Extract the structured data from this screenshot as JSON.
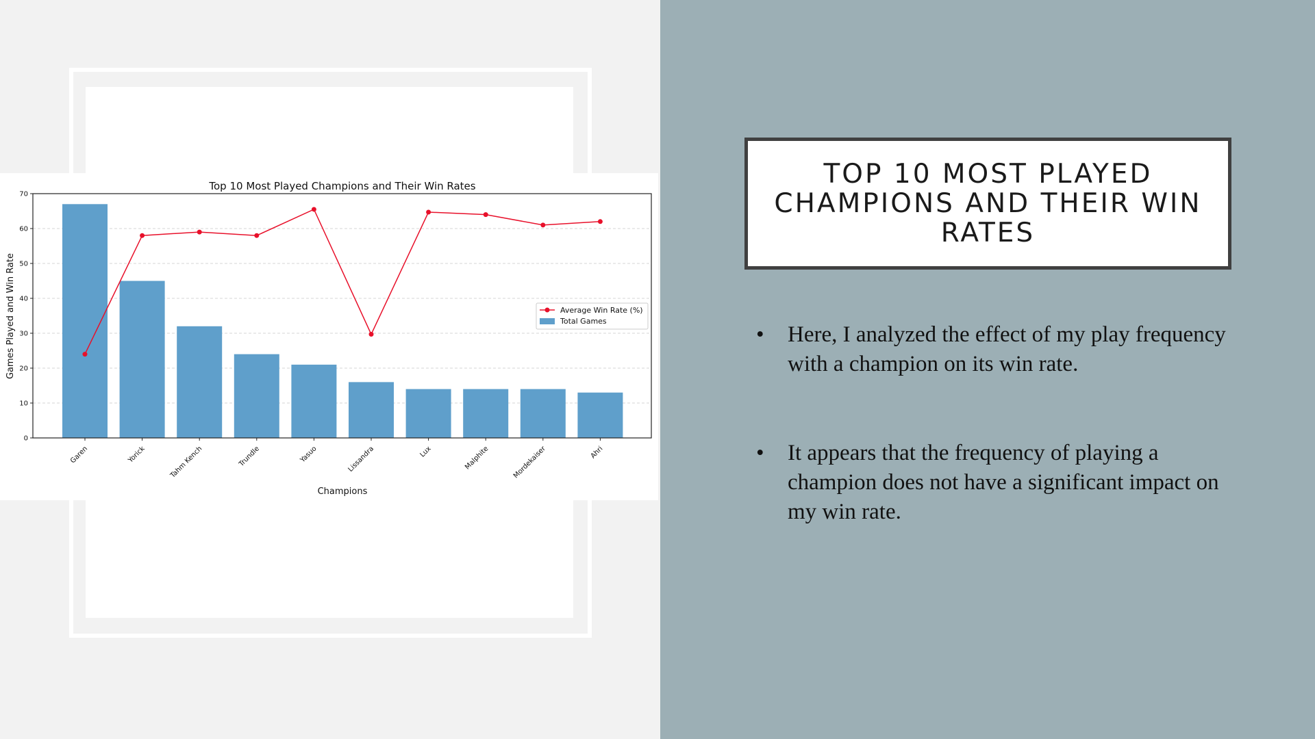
{
  "slide": {
    "title": "TOP 10 MOST PLAYED CHAMPIONS AND THEIR WIN RATES",
    "bullets": [
      "Here, I analyzed the effect of my play frequency with a champion on its win rate.",
      "It appears that the frequency of playing a champion does not have a significant impact on my win rate."
    ],
    "bullet_symbol": "•"
  },
  "colors": {
    "right_panel": "#9cafb5",
    "bar": "#5f9fcb",
    "line": "#e8102a"
  },
  "chart_data": {
    "type": "bar",
    "title": "Top 10 Most Played Champions and Their Win Rates",
    "xlabel": "Champions",
    "ylabel": "Games Played and Win Rate",
    "ylim": [
      0,
      70
    ],
    "yticks": [
      0,
      10,
      20,
      30,
      40,
      50,
      60,
      70
    ],
    "grid": "horizontal dashed",
    "legend_position": "right",
    "categories": [
      "Garen",
      "Yorick",
      "Tahm Kench",
      "Trundle",
      "Yasuo",
      "Lissandra",
      "Lux",
      "Malphite",
      "Mordekaiser",
      "Ahri"
    ],
    "series": [
      {
        "name": "Total Games",
        "type": "bar",
        "values": [
          67,
          45,
          32,
          24,
          21,
          16,
          14,
          14,
          14,
          13
        ]
      },
      {
        "name": "Average Win Rate (%)",
        "type": "line",
        "marker": "circle",
        "values": [
          24,
          58,
          59,
          58,
          65.5,
          29.7,
          64.7,
          64,
          61,
          62
        ]
      }
    ]
  }
}
